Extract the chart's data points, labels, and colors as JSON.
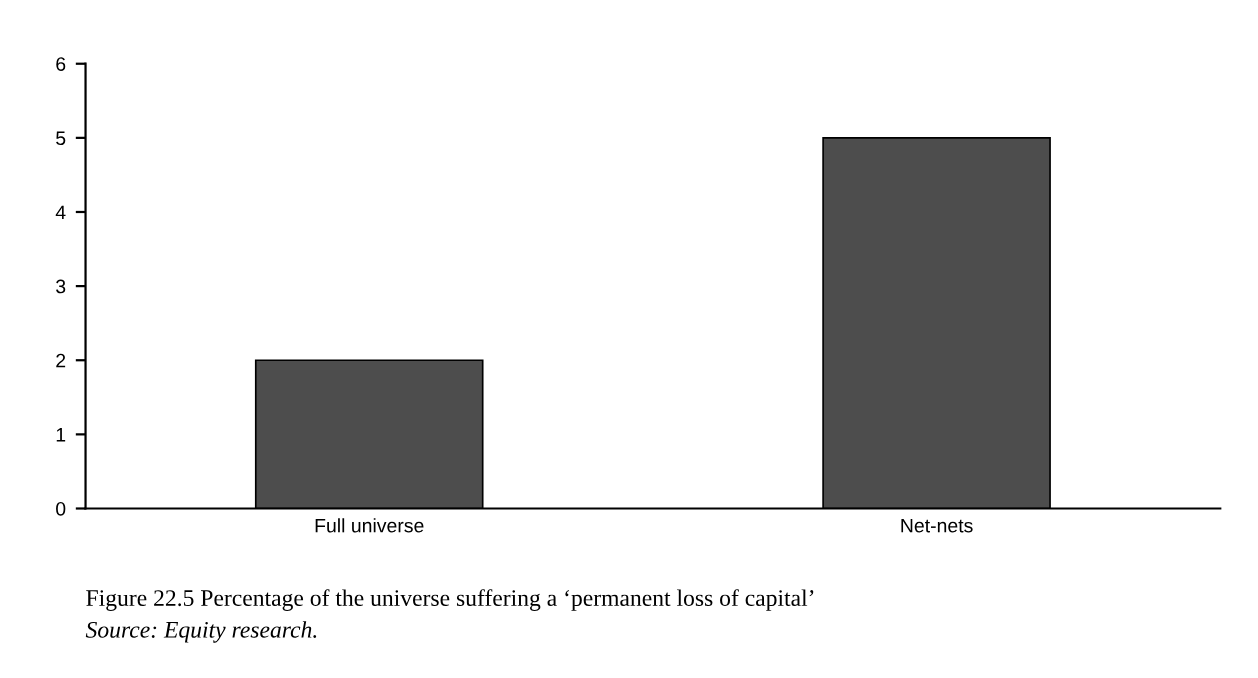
{
  "chart_data": {
    "type": "bar",
    "categories": [
      "Full universe",
      "Net-nets"
    ],
    "values": [
      2,
      5
    ],
    "color": "#4d4d4d",
    "ylim": [
      0,
      6
    ],
    "yticks": [
      0,
      1,
      2,
      3,
      4,
      5,
      6
    ],
    "grid": false,
    "legend": false,
    "annotations": [
      "Figure 22.5 Percentage of the universe suffering a ‘permanent loss of capital’",
      "Source: Equity research."
    ]
  }
}
